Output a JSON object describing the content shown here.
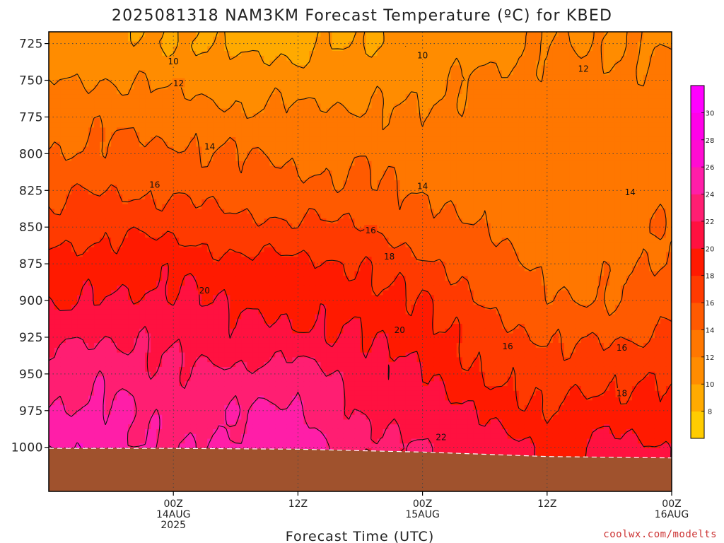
{
  "chart_data": {
    "type": "heatmap",
    "title": "2025081318 NAM3KM Forecast Temperature (ºC) for KBED",
    "xlabel": "Forecast Time (UTC)",
    "ylabel": "",
    "y_axis": {
      "unit": "hPa",
      "reversed": true,
      "range": [
        1030,
        717
      ],
      "ticks": [
        725,
        750,
        775,
        800,
        825,
        850,
        875,
        900,
        925,
        950,
        975,
        1000
      ]
    },
    "x_axis": {
      "unit": "hours after 2025-08-13 18Z",
      "range": [
        -6,
        54
      ],
      "ticks": [
        {
          "hour": 6,
          "lines": [
            "00Z",
            "14AUG",
            "2025"
          ]
        },
        {
          "hour": 18,
          "lines": [
            "12Z"
          ]
        },
        {
          "hour": 30,
          "lines": [
            "00Z",
            "15AUG"
          ]
        },
        {
          "hour": 42,
          "lines": [
            "12Z"
          ]
        },
        {
          "hour": 54,
          "lines": [
            "00Z",
            "16AUG"
          ]
        }
      ]
    },
    "colorbar": {
      "levels": [
        8,
        10,
        12,
        14,
        16,
        18,
        20,
        22,
        24,
        26,
        28,
        30
      ],
      "colors": [
        "#ffcc00",
        "#ffaa00",
        "#ff8c00",
        "#ff7700",
        "#ff5a00",
        "#ff3a00",
        "#ff1a00",
        "#ff1140",
        "#ff1e72",
        "#ff1ea8",
        "#ff0cd2",
        "#ff00e8",
        "#ff00ff"
      ]
    },
    "temperature_by_pressure": {
      "levels_hPa": [
        725,
        750,
        775,
        800,
        825,
        850,
        875,
        900,
        925,
        950,
        975,
        1000
      ],
      "times_hours": [
        -6,
        0,
        6,
        12,
        18,
        24,
        30,
        36,
        42,
        48,
        54
      ],
      "values_C": [
        [
          11.0,
          10.5,
          10.0,
          9.5,
          9.5,
          10.0,
          10.5,
          11.0,
          12.0,
          12.0,
          11.5
        ],
        [
          12.0,
          12.0,
          11.5,
          11.0,
          11.0,
          11.0,
          11.5,
          12.5,
          12.5,
          12.5,
          12.5
        ],
        [
          13.0,
          13.5,
          13.0,
          12.5,
          12.5,
          12.5,
          12.0,
          13.0,
          13.0,
          13.0,
          13.0
        ],
        [
          14.0,
          14.5,
          14.5,
          14.0,
          13.5,
          13.5,
          13.0,
          13.0,
          13.0,
          13.0,
          13.0
        ],
        [
          15.5,
          16.0,
          15.5,
          15.0,
          14.5,
          14.5,
          13.5,
          13.5,
          13.0,
          13.0,
          13.5
        ],
        [
          17.0,
          17.5,
          17.5,
          16.5,
          16.5,
          16.0,
          14.5,
          14.0,
          13.0,
          13.0,
          14.0
        ],
        [
          18.5,
          19.0,
          19.5,
          18.5,
          18.5,
          18.0,
          16.5,
          15.0,
          13.5,
          13.5,
          14.5
        ],
        [
          20.0,
          20.0,
          20.5,
          19.5,
          19.5,
          19.0,
          18.0,
          16.0,
          14.0,
          14.0,
          15.0
        ],
        [
          21.5,
          22.0,
          21.5,
          20.5,
          20.5,
          20.0,
          19.0,
          17.0,
          16.0,
          15.5,
          16.5
        ],
        [
          23.0,
          23.5,
          22.0,
          22.5,
          23.0,
          21.0,
          20.0,
          18.0,
          17.0,
          17.5,
          17.5
        ],
        [
          24.0,
          24.5,
          23.0,
          24.0,
          24.5,
          21.5,
          21.0,
          19.5,
          18.0,
          19.0,
          18.5
        ],
        [
          26.0,
          25.0,
          23.5,
          24.5,
          25.5,
          22.5,
          22.0,
          21.0,
          19.5,
          20.5,
          20.0
        ]
      ]
    },
    "contour_labels": [
      {
        "text": "10",
        "hour": 6.0,
        "p": 737
      },
      {
        "text": "10",
        "hour": 30.0,
        "p": 733
      },
      {
        "text": "12",
        "hour": 45.5,
        "p": 742
      },
      {
        "text": "12",
        "hour": 6.5,
        "p": 752
      },
      {
        "text": "14",
        "hour": 9.5,
        "p": 795
      },
      {
        "text": "14",
        "hour": 30.0,
        "p": 822
      },
      {
        "text": "14",
        "hour": 50.0,
        "p": 826
      },
      {
        "text": "16",
        "hour": 4.2,
        "p": 821
      },
      {
        "text": "16",
        "hour": 25.0,
        "p": 852
      },
      {
        "text": "16",
        "hour": 38.2,
        "p": 931
      },
      {
        "text": "16",
        "hour": 49.2,
        "p": 932
      },
      {
        "text": "18",
        "hour": 26.8,
        "p": 870
      },
      {
        "text": "18",
        "hour": 49.2,
        "p": 963
      },
      {
        "text": "20",
        "hour": 9.0,
        "p": 893
      },
      {
        "text": "20",
        "hour": 27.8,
        "p": 920
      },
      {
        "text": "22",
        "hour": 31.8,
        "p": 993
      }
    ],
    "credit": "coolwx.com/modelts"
  }
}
